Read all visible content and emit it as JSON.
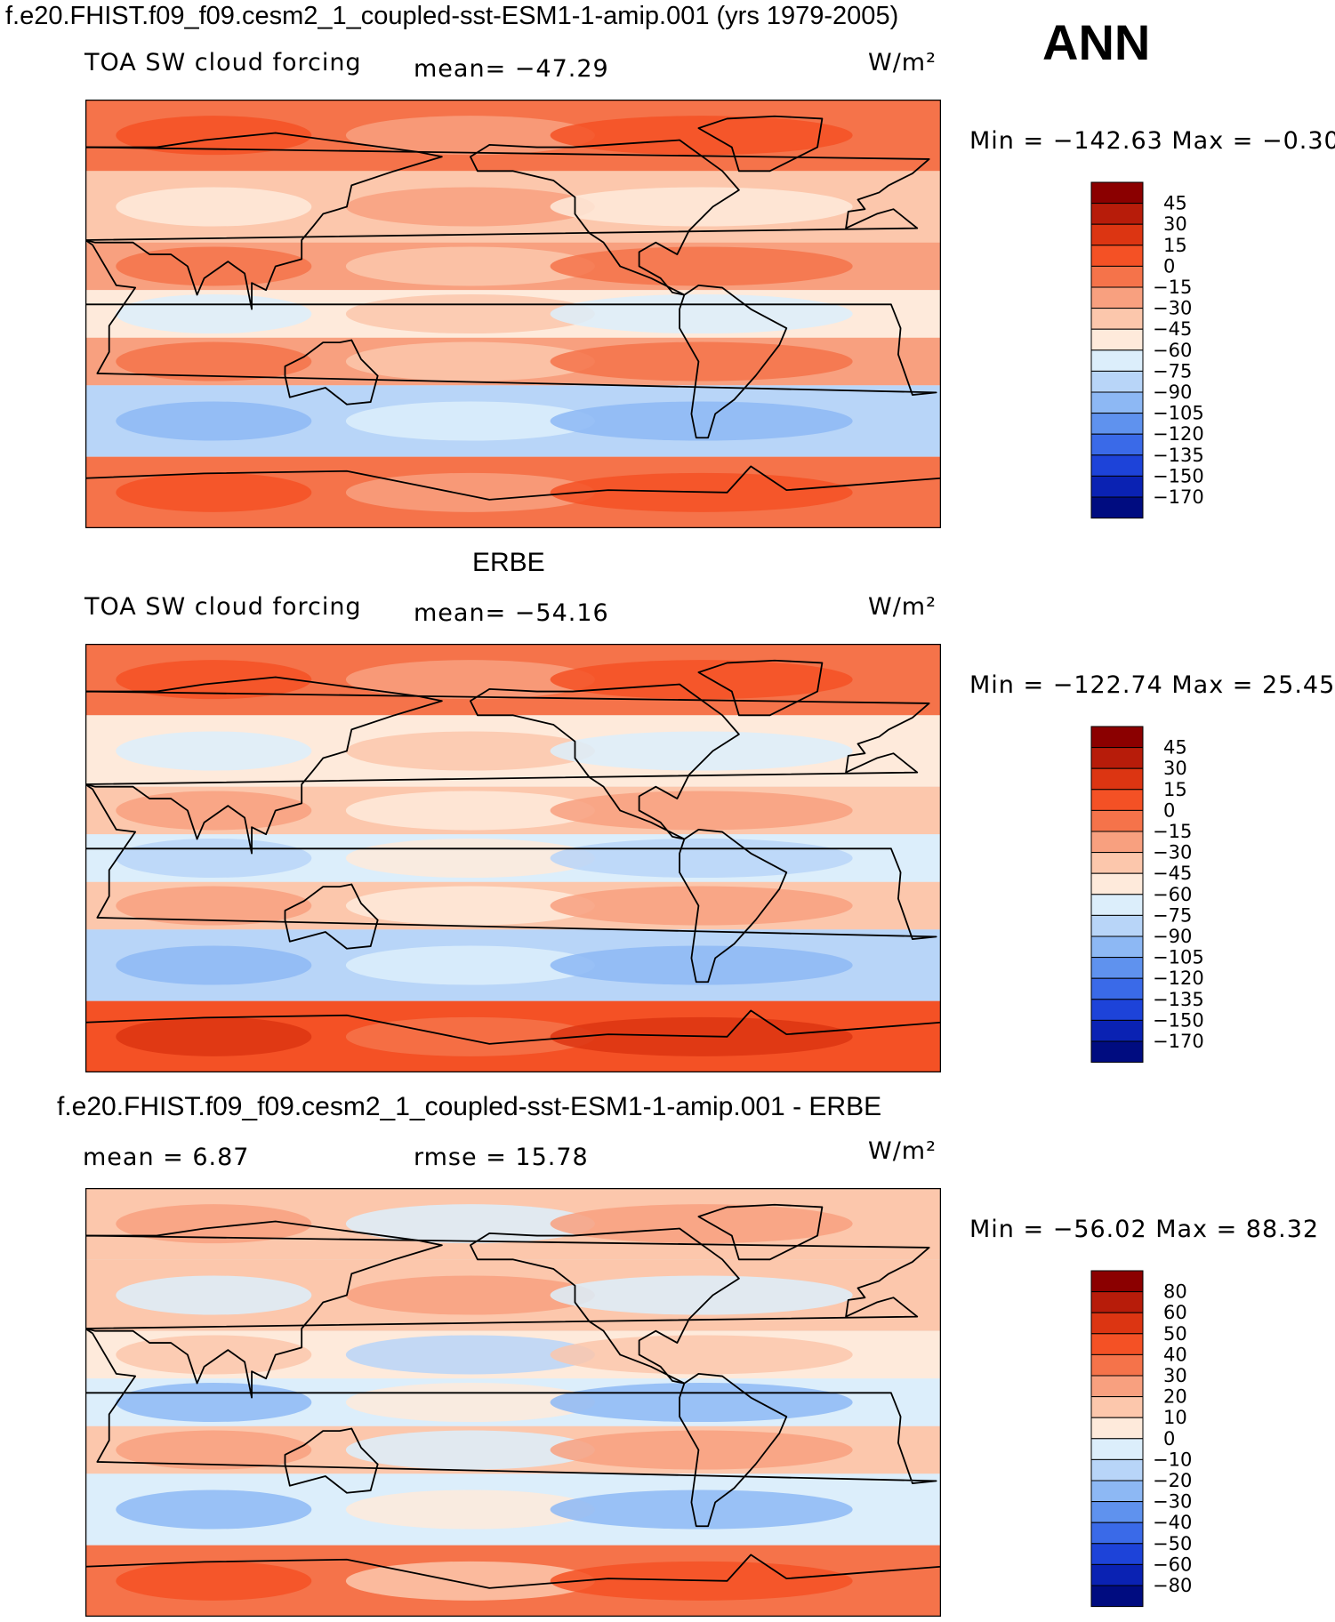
{
  "header": {
    "title": "f.e20.FHIST.f09_f09.cesm2_1_coupled-sst-ESM1-1-amip.001 (yrs 1979-2005)",
    "season": "ANN"
  },
  "panels": [
    {
      "heading": "",
      "left_label": "TOA SW cloud forcing",
      "center_label": "mean= −47.29",
      "units": "W/m²",
      "minmax": "Min = −142.63  Max =  −0.30"
    },
    {
      "heading": "ERBE",
      "left_label": "TOA SW cloud forcing",
      "center_label": "mean= −54.16",
      "units": "W/m²",
      "minmax": "Min = −122.74  Max =  25.45"
    },
    {
      "heading": "f.e20.FHIST.f09_f09.cesm2_1_coupled-sst-ESM1-1-amip.001 - ERBE",
      "left_label": "mean =    6.87",
      "center_label": "rmse =   15.78",
      "units": "W/m²",
      "minmax": "Min = −56.02  Max =  88.32"
    }
  ],
  "colorbars": {
    "field": {
      "labels": [
        "45",
        "30",
        "15",
        "0",
        "−15",
        "−30",
        "−45",
        "−60",
        "−75",
        "−90",
        "−105",
        "−120",
        "−135",
        "−150",
        "−170"
      ],
      "colors": [
        "#8b0000",
        "#b71c0a",
        "#dc3512",
        "#f45125",
        "#f5734a",
        "#f8a07f",
        "#fcc7ac",
        "#feeadb",
        "#dceefb",
        "#b8d5f8",
        "#8db8f4",
        "#5f92ee",
        "#3a6ae8",
        "#1d43d9",
        "#0a22b3",
        "#000c80"
      ]
    },
    "diff": {
      "labels": [
        "80",
        "60",
        "50",
        "40",
        "30",
        "20",
        "10",
        "0",
        "−10",
        "−20",
        "−30",
        "−40",
        "−50",
        "−60",
        "−80"
      ],
      "colors": [
        "#8b0000",
        "#b71c0a",
        "#dc3512",
        "#f45125",
        "#f5734a",
        "#f8a07f",
        "#fcc7ac",
        "#feeadb",
        "#dceefb",
        "#b8d5f8",
        "#8db8f4",
        "#5f92ee",
        "#3a6ae8",
        "#1d43d9",
        "#0a22b3",
        "#000c80"
      ]
    }
  },
  "chart_data": [
    {
      "type": "heatmap",
      "title": "TOA SW cloud forcing",
      "subtitle": "f.e20.FHIST.f09_f09.cesm2_1_coupled-sst-ESM1-1-amip.001 (yrs 1979-2005) ANN",
      "units": "W/m2",
      "mean": -47.29,
      "min": -142.63,
      "max": -0.3,
      "contour_levels": [
        -170,
        -150,
        -135,
        -120,
        -105,
        -90,
        -75,
        -60,
        -45,
        -30,
        -15,
        0,
        15,
        30,
        45
      ],
      "bands": [
        {
          "lat_range": [
            60,
            90
          ],
          "value": -15
        },
        {
          "lat_range": [
            30,
            60
          ],
          "value": -45
        },
        {
          "lat_range": [
            10,
            30
          ],
          "value": -30
        },
        {
          "lat_range": [
            -10,
            10
          ],
          "value": -60
        },
        {
          "lat_range": [
            -30,
            -10
          ],
          "value": -30
        },
        {
          "lat_range": [
            -60,
            -30
          ],
          "value": -90
        },
        {
          "lat_range": [
            -90,
            -60
          ],
          "value": -15
        }
      ]
    },
    {
      "type": "heatmap",
      "title": "ERBE",
      "subtitle": "TOA SW cloud forcing",
      "units": "W/m2",
      "mean": -54.16,
      "min": -122.74,
      "max": 25.45,
      "contour_levels": [
        -170,
        -150,
        -135,
        -120,
        -105,
        -90,
        -75,
        -60,
        -45,
        -30,
        -15,
        0,
        15,
        30,
        45
      ],
      "bands": [
        {
          "lat_range": [
            60,
            90
          ],
          "value": -15
        },
        {
          "lat_range": [
            30,
            60
          ],
          "value": -60
        },
        {
          "lat_range": [
            10,
            30
          ],
          "value": -45
        },
        {
          "lat_range": [
            -10,
            10
          ],
          "value": -75
        },
        {
          "lat_range": [
            -30,
            -10
          ],
          "value": -45
        },
        {
          "lat_range": [
            -60,
            -30
          ],
          "value": -90
        },
        {
          "lat_range": [
            -90,
            -60
          ],
          "value": 0
        }
      ]
    },
    {
      "type": "heatmap",
      "title": "f.e20.FHIST.f09_f09.cesm2_1_coupled-sst-ESM1-1-amip.001 - ERBE",
      "units": "W/m2",
      "mean": 6.87,
      "rmse": 15.78,
      "min": -56.02,
      "max": 88.32,
      "contour_levels": [
        -80,
        -60,
        -50,
        -40,
        -30,
        -20,
        -10,
        0,
        10,
        20,
        30,
        40,
        50,
        60,
        80
      ],
      "bands": [
        {
          "lat_range": [
            60,
            90
          ],
          "value": 10
        },
        {
          "lat_range": [
            30,
            60
          ],
          "value": 10
        },
        {
          "lat_range": [
            10,
            30
          ],
          "value": 0
        },
        {
          "lat_range": [
            -10,
            10
          ],
          "value": -10
        },
        {
          "lat_range": [
            -30,
            -10
          ],
          "value": 10
        },
        {
          "lat_range": [
            -60,
            -30
          ],
          "value": -10
        },
        {
          "lat_range": [
            -90,
            -60
          ],
          "value": 30
        }
      ]
    }
  ]
}
